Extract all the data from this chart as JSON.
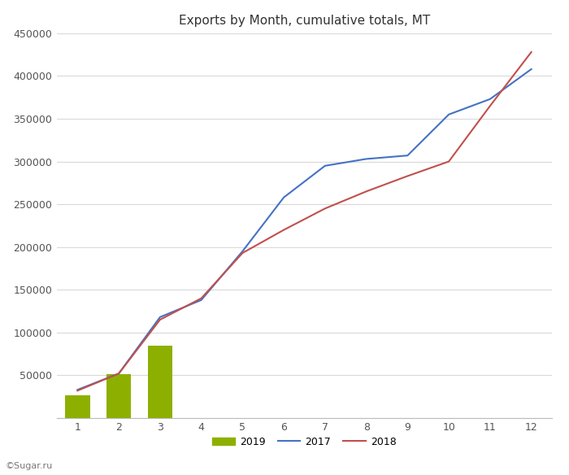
{
  "title": "Exports by Month, cumulative totals, MT",
  "x_months": [
    1,
    2,
    3,
    4,
    5,
    6,
    7,
    8,
    9,
    10,
    11,
    12
  ],
  "series_2017": [
    33000,
    52000,
    118000,
    138000,
    195000,
    258000,
    295000,
    303000,
    307000,
    355000,
    373000,
    408000
  ],
  "series_2018": [
    32000,
    52000,
    115000,
    140000,
    193000,
    220000,
    245000,
    265000,
    283000,
    300000,
    365000,
    428000
  ],
  "series_2019_bars": [
    27000,
    51000,
    85000
  ],
  "bar_color": "#8DB000",
  "line_2017_color": "#4472C4",
  "line_2018_color": "#C0504D",
  "ylim": [
    0,
    450000
  ],
  "yticks": [
    0,
    50000,
    100000,
    150000,
    200000,
    250000,
    300000,
    350000,
    400000,
    450000
  ],
  "xlim": [
    0.5,
    12.5
  ],
  "xticks": [
    1,
    2,
    3,
    4,
    5,
    6,
    7,
    8,
    9,
    10,
    11,
    12
  ],
  "background_color": "#FFFFFF",
  "grid_color": "#D9D9D9",
  "watermark": "©Sugar.ru",
  "legend_labels": [
    "2019",
    "2017",
    "2018"
  ]
}
